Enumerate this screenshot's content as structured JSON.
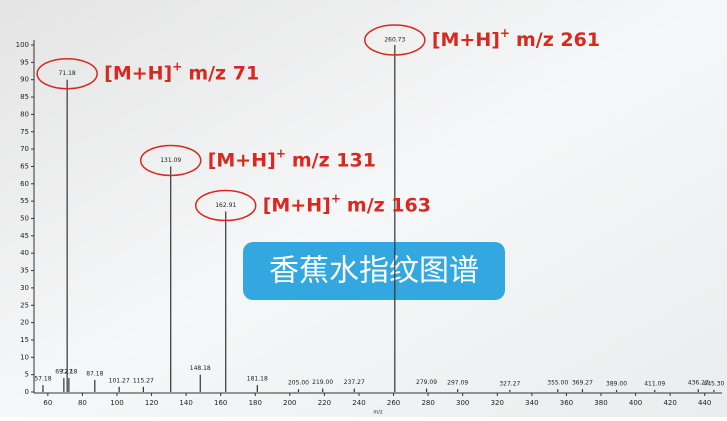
{
  "chart_data": {
    "type": "stem",
    "x": [
      57.18,
      69.27,
      71.18,
      72.18,
      87.18,
      101.27,
      115.27,
      131.09,
      148.18,
      162.91,
      181.18,
      205.0,
      219.0,
      237.27,
      260.73,
      279.09,
      297.09,
      327.27,
      355.0,
      369.27,
      389.0,
      411.09,
      436.27,
      445.3
    ],
    "values": [
      2,
      4,
      90,
      4,
      3.5,
      1.5,
      1.5,
      65,
      5,
      52,
      2,
      0.8,
      1,
      1,
      100,
      1,
      0.8,
      0.6,
      0.8,
      0.8,
      0.6,
      0.6,
      0.8,
      0.6
    ],
    "peak_labels": [
      "57.18",
      "69.27",
      "71.18",
      "72.18",
      "87.18",
      "101.27",
      "115.27",
      "131.09",
      "148.18",
      "162.91",
      "181.18",
      "205.00",
      "219.00",
      "237.27",
      "260.73",
      "279.09",
      "297.09",
      "327.27",
      "355.00",
      "369.27",
      "389.00",
      "411.09",
      "436.27",
      "445.30"
    ],
    "color": "#333333",
    "xlabel": "m/z",
    "xlim": [
      52,
      450
    ],
    "xticks": [
      60,
      80,
      100,
      120,
      140,
      160,
      180,
      200,
      220,
      240,
      260,
      280,
      300,
      320,
      340,
      360,
      380,
      400,
      420,
      440
    ],
    "ylim": [
      0,
      100
    ],
    "yticks": [
      0,
      5,
      10,
      15,
      20,
      25,
      30,
      35,
      40,
      45,
      50,
      55,
      60,
      65,
      70,
      75,
      80,
      85,
      90,
      95,
      100
    ],
    "annotations": [
      {
        "ion": "[M+H]",
        "charge": "+",
        "mz": "m/z 71"
      },
      {
        "ion": "[M+H]",
        "charge": "+",
        "mz": "m/z 131"
      },
      {
        "ion": "[M+H]",
        "charge": "+",
        "mz": "m/z 163"
      },
      {
        "ion": "[M+H]",
        "charge": "+",
        "mz": "m/z 261"
      }
    ],
    "banner": "香蕉水指纹图谱"
  }
}
